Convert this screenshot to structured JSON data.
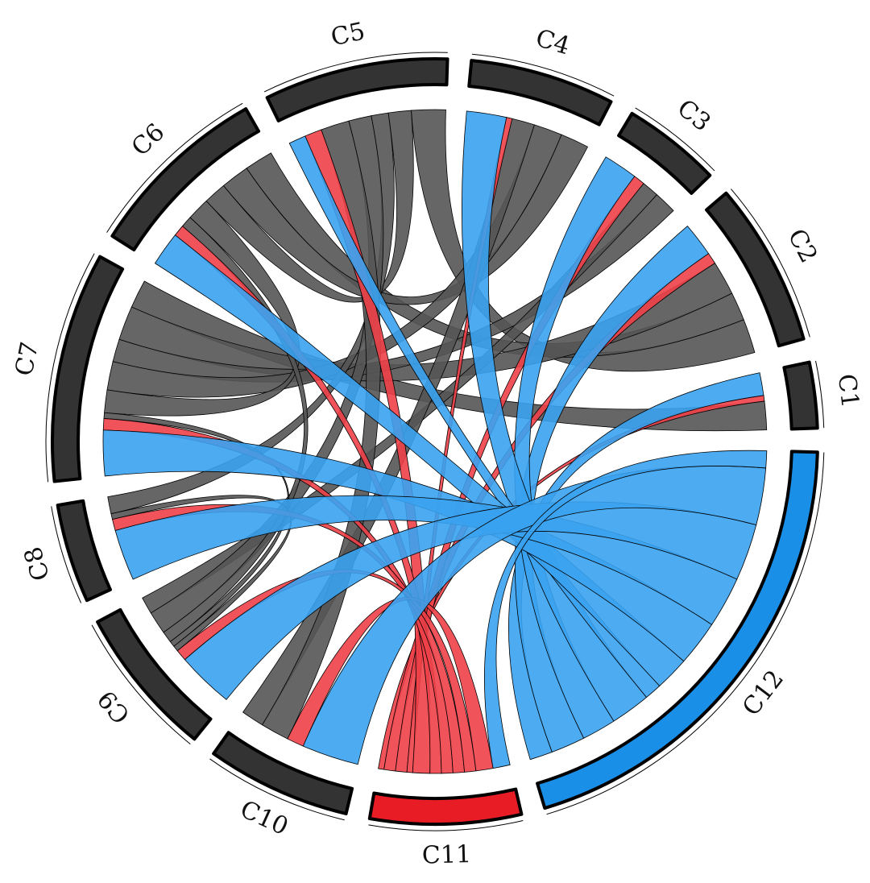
{
  "chart_data": {
    "type": "chord",
    "categories": [
      "C1",
      "C2",
      "C3",
      "C4",
      "C5",
      "C6",
      "C7",
      "C8",
      "C9",
      "C10",
      "C11",
      "C12"
    ],
    "colors": [
      "#333333",
      "#333333",
      "#333333",
      "#333333",
      "#333333",
      "#333333",
      "#333333",
      "#333333",
      "#333333",
      "#333333",
      "#e81c24",
      "#1a8fe8"
    ],
    "links": [
      {
        "source": "C1",
        "target": "C7",
        "value": 5,
        "color": "#555555"
      },
      {
        "source": "C2",
        "target": "C5",
        "value": 6,
        "color": "#555555"
      },
      {
        "source": "C2",
        "target": "C6",
        "value": 5,
        "color": "#555555"
      },
      {
        "source": "C2",
        "target": "C7",
        "value": 6,
        "color": "#555555"
      },
      {
        "source": "C3",
        "target": "C7",
        "value": 4,
        "color": "#555555"
      },
      {
        "source": "C3",
        "target": "C9",
        "value": 3,
        "color": "#555555"
      },
      {
        "source": "C4",
        "target": "C6",
        "value": 5,
        "color": "#555555"
      },
      {
        "source": "C4",
        "target": "C7",
        "value": 5,
        "color": "#555555"
      },
      {
        "source": "C4",
        "target": "C10",
        "value": 4,
        "color": "#555555"
      },
      {
        "source": "C5",
        "target": "C6",
        "value": 4,
        "color": "#555555"
      },
      {
        "source": "C5",
        "target": "C8",
        "value": 3,
        "color": "#555555"
      },
      {
        "source": "C5",
        "target": "C9",
        "value": 4,
        "color": "#555555"
      },
      {
        "source": "C5",
        "target": "C10",
        "value": 5,
        "color": "#555555"
      },
      {
        "source": "C6",
        "target": "C7",
        "value": 4,
        "color": "#555555"
      },
      {
        "source": "C6",
        "target": "C9",
        "value": 2,
        "color": "#555555"
      },
      {
        "source": "C7",
        "target": "C9",
        "value": 1,
        "color": "#555555"
      },
      {
        "source": "C8",
        "target": "C9",
        "value": 1,
        "color": "#555555"
      },
      {
        "source": "C11",
        "target": "C1",
        "value": 1,
        "color": "#ee4048"
      },
      {
        "source": "C11",
        "target": "C2",
        "value": 2,
        "color": "#ee4048"
      },
      {
        "source": "C11",
        "target": "C3",
        "value": 2,
        "color": "#ee4048"
      },
      {
        "source": "C11",
        "target": "C4",
        "value": 1,
        "color": "#ee4048"
      },
      {
        "source": "C11",
        "target": "C5",
        "value": 3,
        "color": "#ee4048"
      },
      {
        "source": "C11",
        "target": "C6",
        "value": 2,
        "color": "#ee4048"
      },
      {
        "source": "C11",
        "target": "C7",
        "value": 2,
        "color": "#ee4048"
      },
      {
        "source": "C11",
        "target": "C8",
        "value": 2,
        "color": "#ee4048"
      },
      {
        "source": "C11",
        "target": "C9",
        "value": 2,
        "color": "#ee4048"
      },
      {
        "source": "C11",
        "target": "C10",
        "value": 3,
        "color": "#ee4048"
      },
      {
        "source": "C12",
        "target": "C1",
        "value": 4,
        "color": "#3aa2f0"
      },
      {
        "source": "C12",
        "target": "C2",
        "value": 6,
        "color": "#3aa2f0"
      },
      {
        "source": "C12",
        "target": "C3",
        "value": 6,
        "color": "#3aa2f0"
      },
      {
        "source": "C12",
        "target": "C4",
        "value": 7,
        "color": "#3aa2f0"
      },
      {
        "source": "C12",
        "target": "C5",
        "value": 3,
        "color": "#3aa2f0"
      },
      {
        "source": "C12",
        "target": "C6",
        "value": 6,
        "color": "#3aa2f0"
      },
      {
        "source": "C12",
        "target": "C7",
        "value": 8,
        "color": "#3aa2f0"
      },
      {
        "source": "C12",
        "target": "C8",
        "value": 9,
        "color": "#3aa2f0"
      },
      {
        "source": "C12",
        "target": "C9",
        "value": 10,
        "color": "#3aa2f0"
      },
      {
        "source": "C12",
        "target": "C10",
        "value": 10,
        "color": "#3aa2f0"
      },
      {
        "source": "C12",
        "target": "C11",
        "value": 3,
        "color": "#3aa2f0"
      }
    ]
  }
}
